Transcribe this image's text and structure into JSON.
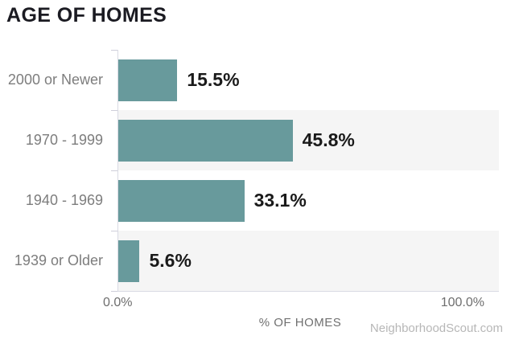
{
  "title": "AGE OF HOMES",
  "watermark": "NeighborhoodScout.com",
  "chart_data": {
    "type": "bar",
    "orientation": "horizontal",
    "title": "AGE OF HOMES",
    "categories": [
      "2000 or Newer",
      "1970 - 1999",
      "1940 - 1969",
      "1939 or Older"
    ],
    "values": [
      15.5,
      45.8,
      33.1,
      5.6
    ],
    "value_labels": [
      "15.5%",
      "45.8%",
      "33.1%",
      "5.6%"
    ],
    "xlabel": "% OF HOMES",
    "x_tick_labels": [
      "0.0%",
      "100.0%"
    ],
    "xlim": [
      0,
      100
    ],
    "grid": false,
    "legend": false,
    "striped_rows": [
      1,
      3
    ],
    "colors": {
      "bar": "#689a9c",
      "row_stripe": "#f5f5f5",
      "axis_line": "#d9dae3",
      "category_label": "#7d7d7d",
      "value_label": "#1a1a1a",
      "axis_tick_label": "#6e6e6e",
      "title_text": "#1b1b22",
      "watermark": "#b7b7b7"
    }
  }
}
